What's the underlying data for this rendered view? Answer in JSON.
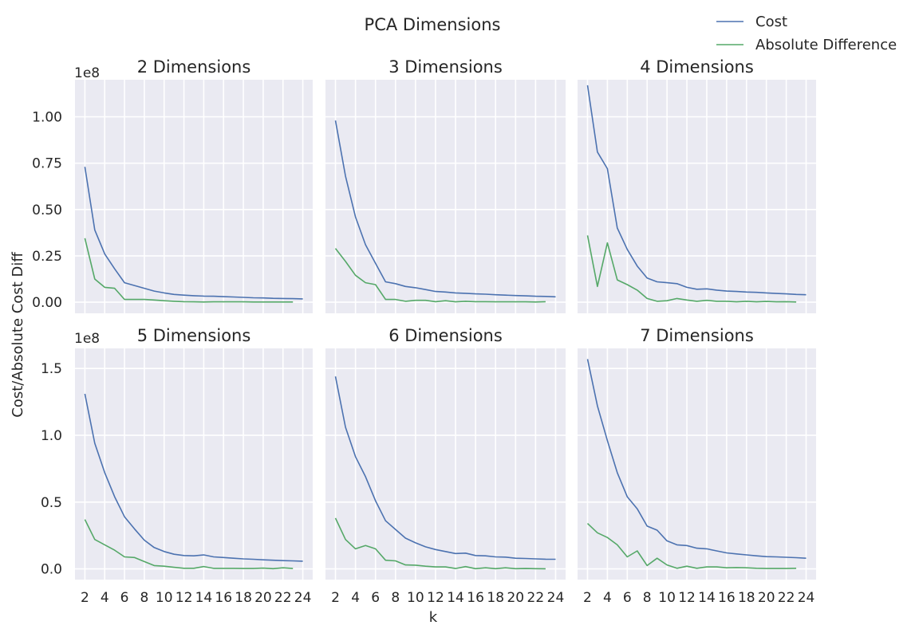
{
  "figure": {
    "title": "PCA Dimensions",
    "xlabel": "k",
    "ylabel": "Cost/Absolute Cost Diff",
    "offset_label": "1e8",
    "legend": {
      "placement": "top-right",
      "entries": [
        "Cost",
        "Absolute Difference"
      ]
    },
    "colors": {
      "background": "#eaeaf2",
      "grid": "#ffffff",
      "Cost": "#4c72b0",
      "Absolute Difference": "#55a868"
    }
  },
  "chart_data": [
    {
      "type": "line",
      "title": "2 Dimensions",
      "xlim": [
        1,
        25
      ],
      "ylim": [
        -0.06,
        1.2
      ],
      "x_ticks": [
        2,
        4,
        6,
        8,
        10,
        12,
        14,
        16,
        18,
        20,
        22,
        24
      ],
      "y_ticks": [
        0.0,
        0.25,
        0.5,
        0.75,
        1.0
      ],
      "y_tick_labels": [
        "0.00",
        "0.25",
        "0.50",
        "0.75",
        "1.00"
      ],
      "y_scale": "1e8",
      "grid": true,
      "series": [
        {
          "name": "Cost",
          "x": [
            2,
            3,
            4,
            5,
            6,
            7,
            8,
            9,
            10,
            11,
            12,
            13,
            14,
            15,
            16,
            17,
            18,
            19,
            20,
            21,
            22,
            23,
            24
          ],
          "values": [
            0.73,
            0.39,
            0.26,
            0.18,
            0.105,
            0.09,
            0.075,
            0.06,
            0.05,
            0.042,
            0.038,
            0.035,
            0.033,
            0.032,
            0.03,
            0.028,
            0.026,
            0.024,
            0.023,
            0.021,
            0.02,
            0.019,
            0.018
          ]
        },
        {
          "name": "Absolute Difference",
          "x": [
            2,
            3,
            4,
            5,
            6,
            7,
            8,
            9,
            10,
            11,
            12,
            13,
            14,
            15,
            16,
            17,
            18,
            19,
            20,
            21,
            22,
            23
          ],
          "values": [
            0.345,
            0.125,
            0.08,
            0.075,
            0.015,
            0.015,
            0.015,
            0.012,
            0.008,
            0.005,
            0.003,
            0.002,
            0.001,
            0.002,
            0.002,
            0.002,
            0.002,
            0.001,
            0.001,
            0.001,
            0.001,
            0.001
          ]
        }
      ]
    },
    {
      "type": "line",
      "title": "3 Dimensions",
      "xlim": [
        1,
        25
      ],
      "ylim": [
        -0.06,
        1.2
      ],
      "x_ticks": [
        2,
        4,
        6,
        8,
        10,
        12,
        14,
        16,
        18,
        20,
        22,
        24
      ],
      "y_ticks": [
        0.0,
        0.25,
        0.5,
        0.75,
        1.0
      ],
      "y_scale": "1e8",
      "grid": true,
      "series": [
        {
          "name": "Cost",
          "x": [
            2,
            3,
            4,
            5,
            6,
            7,
            8,
            9,
            10,
            11,
            12,
            13,
            14,
            15,
            16,
            17,
            18,
            19,
            20,
            21,
            22,
            23,
            24
          ],
          "values": [
            0.98,
            0.68,
            0.46,
            0.31,
            0.21,
            0.11,
            0.1,
            0.085,
            0.078,
            0.068,
            0.058,
            0.055,
            0.05,
            0.048,
            0.045,
            0.043,
            0.04,
            0.038,
            0.036,
            0.034,
            0.032,
            0.031,
            0.029
          ]
        },
        {
          "name": "Absolute Difference",
          "x": [
            2,
            3,
            4,
            5,
            6,
            7,
            8,
            9,
            10,
            11,
            12,
            13,
            14,
            15,
            16,
            17,
            18,
            19,
            20,
            21,
            22,
            23
          ],
          "values": [
            0.29,
            0.22,
            0.145,
            0.105,
            0.095,
            0.015,
            0.015,
            0.005,
            0.01,
            0.01,
            0.003,
            0.008,
            0.002,
            0.005,
            0.003,
            0.003,
            0.002,
            0.002,
            0.002,
            0.002,
            0.001,
            0.003
          ]
        }
      ]
    },
    {
      "type": "line",
      "title": "4 Dimensions",
      "xlim": [
        1,
        25
      ],
      "ylim": [
        -0.06,
        1.2
      ],
      "x_ticks": [
        2,
        4,
        6,
        8,
        10,
        12,
        14,
        16,
        18,
        20,
        22,
        24
      ],
      "y_ticks": [
        0.0,
        0.25,
        0.5,
        0.75,
        1.0
      ],
      "y_scale": "1e8",
      "grid": true,
      "series": [
        {
          "name": "Cost",
          "x": [
            2,
            3,
            4,
            5,
            6,
            7,
            8,
            9,
            10,
            11,
            12,
            13,
            14,
            15,
            16,
            17,
            18,
            19,
            20,
            21,
            22,
            23,
            24
          ],
          "values": [
            1.17,
            0.81,
            0.72,
            0.4,
            0.285,
            0.195,
            0.13,
            0.11,
            0.105,
            0.1,
            0.08,
            0.07,
            0.072,
            0.065,
            0.06,
            0.058,
            0.055,
            0.053,
            0.05,
            0.047,
            0.045,
            0.042,
            0.04
          ]
        },
        {
          "name": "Absolute Difference",
          "x": [
            2,
            3,
            4,
            5,
            6,
            7,
            8,
            9,
            10,
            11,
            12,
            13,
            14,
            15,
            16,
            17,
            18,
            19,
            20,
            21,
            22,
            23
          ],
          "values": [
            0.36,
            0.085,
            0.32,
            0.12,
            0.095,
            0.065,
            0.02,
            0.005,
            0.008,
            0.02,
            0.012,
            0.005,
            0.01,
            0.005,
            0.005,
            0.002,
            0.005,
            0.002,
            0.004,
            0.002,
            0.003,
            0.001
          ]
        }
      ]
    },
    {
      "type": "line",
      "title": "5 Dimensions",
      "xlim": [
        1,
        25
      ],
      "ylim": [
        -0.08,
        1.65
      ],
      "x_ticks": [
        2,
        4,
        6,
        8,
        10,
        12,
        14,
        16,
        18,
        20,
        22,
        24
      ],
      "y_ticks": [
        0.0,
        0.5,
        1.0,
        1.5
      ],
      "y_tick_labels": [
        "0.0",
        "0.5",
        "1.0",
        "1.5"
      ],
      "y_scale": "1e8",
      "grid": true,
      "series": [
        {
          "name": "Cost",
          "x": [
            2,
            3,
            4,
            5,
            6,
            7,
            8,
            9,
            10,
            11,
            12,
            13,
            14,
            15,
            16,
            17,
            18,
            19,
            20,
            21,
            22,
            23,
            24
          ],
          "values": [
            1.31,
            0.94,
            0.72,
            0.54,
            0.39,
            0.3,
            0.215,
            0.16,
            0.13,
            0.11,
            0.1,
            0.098,
            0.105,
            0.09,
            0.085,
            0.08,
            0.075,
            0.072,
            0.068,
            0.065,
            0.062,
            0.06,
            0.058
          ]
        },
        {
          "name": "Absolute Difference",
          "x": [
            2,
            3,
            4,
            5,
            6,
            7,
            8,
            9,
            10,
            11,
            12,
            13,
            14,
            15,
            16,
            17,
            18,
            19,
            20,
            21,
            22,
            23
          ],
          "values": [
            0.37,
            0.22,
            0.18,
            0.14,
            0.09,
            0.085,
            0.055,
            0.025,
            0.02,
            0.012,
            0.005,
            0.005,
            0.018,
            0.004,
            0.004,
            0.004,
            0.003,
            0.003,
            0.006,
            0.002,
            0.008,
            0.003
          ]
        }
      ]
    },
    {
      "type": "line",
      "title": "6 Dimensions",
      "xlim": [
        1,
        25
      ],
      "ylim": [
        -0.08,
        1.65
      ],
      "x_ticks": [
        2,
        4,
        6,
        8,
        10,
        12,
        14,
        16,
        18,
        20,
        22,
        24
      ],
      "y_ticks": [
        0.0,
        0.5,
        1.0,
        1.5
      ],
      "y_scale": "1e8",
      "grid": true,
      "series": [
        {
          "name": "Cost",
          "x": [
            2,
            3,
            4,
            5,
            6,
            7,
            8,
            9,
            10,
            11,
            12,
            13,
            14,
            15,
            16,
            17,
            18,
            19,
            20,
            21,
            22,
            23,
            24
          ],
          "values": [
            1.44,
            1.06,
            0.84,
            0.69,
            0.51,
            0.36,
            0.295,
            0.23,
            0.195,
            0.165,
            0.145,
            0.13,
            0.115,
            0.118,
            0.1,
            0.098,
            0.09,
            0.088,
            0.08,
            0.078,
            0.075,
            0.073,
            0.072
          ]
        },
        {
          "name": "Absolute Difference",
          "x": [
            2,
            3,
            4,
            5,
            6,
            7,
            8,
            9,
            10,
            11,
            12,
            13,
            14,
            15,
            16,
            17,
            18,
            19,
            20,
            21,
            22,
            23
          ],
          "values": [
            0.38,
            0.22,
            0.15,
            0.175,
            0.15,
            0.065,
            0.06,
            0.03,
            0.028,
            0.02,
            0.015,
            0.015,
            0.003,
            0.017,
            0.002,
            0.008,
            0.002,
            0.008,
            0.002,
            0.003,
            0.002,
            0.001
          ]
        }
      ]
    },
    {
      "type": "line",
      "title": "7 Dimensions",
      "xlim": [
        1,
        25
      ],
      "ylim": [
        -0.08,
        1.65
      ],
      "x_ticks": [
        2,
        4,
        6,
        8,
        10,
        12,
        14,
        16,
        18,
        20,
        22,
        24
      ],
      "y_ticks": [
        0.0,
        0.5,
        1.0,
        1.5
      ],
      "y_scale": "1e8",
      "grid": true,
      "series": [
        {
          "name": "Cost",
          "x": [
            2,
            3,
            4,
            5,
            6,
            7,
            8,
            9,
            10,
            11,
            12,
            13,
            14,
            15,
            16,
            17,
            18,
            19,
            20,
            21,
            22,
            23,
            24
          ],
          "values": [
            1.57,
            1.22,
            0.96,
            0.72,
            0.54,
            0.45,
            0.32,
            0.29,
            0.21,
            0.18,
            0.175,
            0.155,
            0.15,
            0.135,
            0.12,
            0.112,
            0.105,
            0.098,
            0.092,
            0.09,
            0.087,
            0.084,
            0.08
          ]
        },
        {
          "name": "Absolute Difference",
          "x": [
            2,
            3,
            4,
            5,
            6,
            7,
            8,
            9,
            10,
            11,
            12,
            13,
            14,
            15,
            16,
            17,
            18,
            19,
            20,
            21,
            22,
            23
          ],
          "values": [
            0.34,
            0.27,
            0.235,
            0.18,
            0.09,
            0.135,
            0.025,
            0.08,
            0.03,
            0.005,
            0.02,
            0.005,
            0.015,
            0.015,
            0.008,
            0.01,
            0.008,
            0.005,
            0.003,
            0.003,
            0.003,
            0.005
          ]
        }
      ]
    }
  ]
}
